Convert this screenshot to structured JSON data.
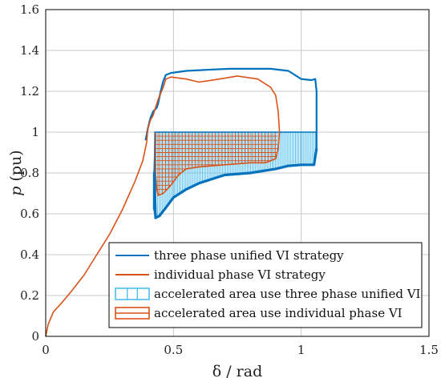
{
  "chart_data": {
    "type": "line",
    "xlabel": "δ / rad",
    "ylabel_var": "p",
    "ylabel_unit": " (pu)",
    "xlim": [
      0,
      1.5
    ],
    "ylim": [
      0,
      1.6
    ],
    "xticks": [
      0,
      0.5,
      1,
      1.5
    ],
    "xtick_labels": [
      "0",
      "0.5",
      "1",
      "1.5"
    ],
    "yticks": [
      0,
      0.2,
      0.4,
      0.6,
      0.8,
      1,
      1.2,
      1.4,
      1.6
    ],
    "ytick_labels": [
      "0",
      "0.2",
      "0.4",
      "0.6",
      "0.8",
      "1",
      "1.2",
      "1.4",
      "1.6"
    ],
    "grid": true,
    "legend_position": "bottom-right",
    "colors": {
      "blue": "#0072BD",
      "orange": "#D95319",
      "light_blue": "#4DBEEE"
    },
    "series": [
      {
        "name": "three phase unified VI strategy",
        "color": "#0072BD",
        "points": [
          [
            0.391,
            0.96
          ],
          [
            0.4,
            1.02
          ],
          [
            0.41,
            1.07
          ],
          [
            0.42,
            1.1
          ],
          [
            0.435,
            1.12
          ],
          [
            0.44,
            1.14
          ],
          [
            0.45,
            1.2
          ],
          [
            0.46,
            1.25
          ],
          [
            0.47,
            1.28
          ],
          [
            0.49,
            1.29
          ],
          [
            0.55,
            1.3
          ],
          [
            0.63,
            1.305
          ],
          [
            0.72,
            1.31
          ],
          [
            0.8,
            1.31
          ],
          [
            0.88,
            1.31
          ],
          [
            0.95,
            1.3
          ],
          [
            1.0,
            1.26
          ],
          [
            1.04,
            1.255
          ],
          [
            1.055,
            1.26
          ],
          [
            1.06,
            1.2
          ],
          [
            1.06,
            1.0
          ],
          [
            1.06,
            0.92
          ],
          [
            1.05,
            0.84
          ],
          [
            1.0,
            0.84
          ],
          [
            0.95,
            0.835
          ],
          [
            0.9,
            0.82
          ],
          [
            0.8,
            0.8
          ],
          [
            0.7,
            0.79
          ],
          [
            0.6,
            0.75
          ],
          [
            0.55,
            0.72
          ],
          [
            0.5,
            0.68
          ],
          [
            0.47,
            0.63
          ],
          [
            0.445,
            0.59
          ],
          [
            0.43,
            0.58
          ],
          [
            0.425,
            0.62
          ],
          [
            0.425,
            0.8
          ],
          [
            0.43,
            1.0
          ]
        ]
      },
      {
        "name": "individual phase VI strategy",
        "color": "#D95319",
        "points": [
          [
            0.0,
            0.0
          ],
          [
            0.01,
            0.06
          ],
          [
            0.03,
            0.12
          ],
          [
            0.06,
            0.16
          ],
          [
            0.1,
            0.22
          ],
          [
            0.15,
            0.3
          ],
          [
            0.2,
            0.4
          ],
          [
            0.25,
            0.5
          ],
          [
            0.3,
            0.62
          ],
          [
            0.35,
            0.76
          ],
          [
            0.38,
            0.86
          ],
          [
            0.395,
            0.95
          ],
          [
            0.4,
            1.02
          ],
          [
            0.41,
            1.06
          ],
          [
            0.42,
            1.08
          ],
          [
            0.43,
            1.12
          ],
          [
            0.44,
            1.16
          ],
          [
            0.46,
            1.22
          ],
          [
            0.47,
            1.26
          ],
          [
            0.49,
            1.27
          ],
          [
            0.55,
            1.26
          ],
          [
            0.6,
            1.245
          ],
          [
            0.68,
            1.26
          ],
          [
            0.75,
            1.275
          ],
          [
            0.83,
            1.26
          ],
          [
            0.88,
            1.22
          ],
          [
            0.9,
            1.18
          ],
          [
            0.91,
            1.1
          ],
          [
            0.915,
            1.0
          ],
          [
            0.91,
            0.92
          ],
          [
            0.9,
            0.87
          ],
          [
            0.86,
            0.85
          ],
          [
            0.8,
            0.85
          ],
          [
            0.7,
            0.84
          ],
          [
            0.6,
            0.83
          ],
          [
            0.55,
            0.82
          ],
          [
            0.52,
            0.79
          ],
          [
            0.49,
            0.74
          ],
          [
            0.46,
            0.7
          ],
          [
            0.44,
            0.69
          ],
          [
            0.435,
            0.72
          ],
          [
            0.43,
            0.8
          ],
          [
            0.43,
            0.9
          ],
          [
            0.43,
            1.0
          ]
        ]
      }
    ],
    "legend_entries": [
      {
        "label": "three phase unified VI strategy",
        "kind": "line",
        "color": "#0072BD"
      },
      {
        "label": "individual phase VI strategy",
        "kind": "line",
        "color": "#D95319"
      },
      {
        "label": "accelerated area use three phase unified VI",
        "kind": "area",
        "color": "#4DBEEE"
      },
      {
        "label": "accelerated area use individual phase VI",
        "kind": "area",
        "color": "#D95319"
      }
    ]
  }
}
